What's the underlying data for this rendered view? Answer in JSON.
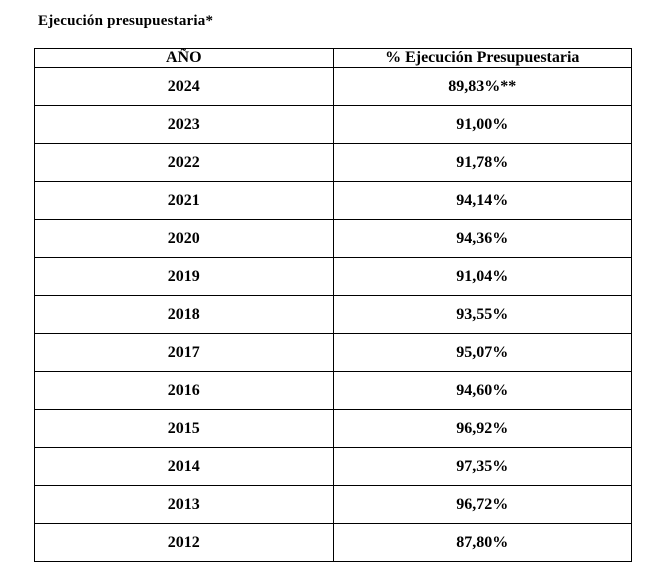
{
  "title": "Ejecución presupuestaria*",
  "table": {
    "headers": [
      "AÑO",
      "% Ejecución Presupuestaria"
    ],
    "rows": [
      {
        "year": "2024",
        "percentage": "89,83%**"
      },
      {
        "year": "2023",
        "percentage": "91,00%"
      },
      {
        "year": "2022",
        "percentage": "91,78%"
      },
      {
        "year": "2021",
        "percentage": "94,14%"
      },
      {
        "year": "2020",
        "percentage": "94,36%"
      },
      {
        "year": "2019",
        "percentage": "91,04%"
      },
      {
        "year": "2018",
        "percentage": "93,55%"
      },
      {
        "year": "2017",
        "percentage": "95,07%"
      },
      {
        "year": "2016",
        "percentage": "94,60%"
      },
      {
        "year": "2015",
        "percentage": "96,92%"
      },
      {
        "year": "2014",
        "percentage": "97,35%"
      },
      {
        "year": "2013",
        "percentage": "96,72%"
      },
      {
        "year": "2012",
        "percentage": "87,80%"
      }
    ]
  },
  "colors": {
    "text": "#000000",
    "border": "#000000",
    "background": "#ffffff"
  }
}
